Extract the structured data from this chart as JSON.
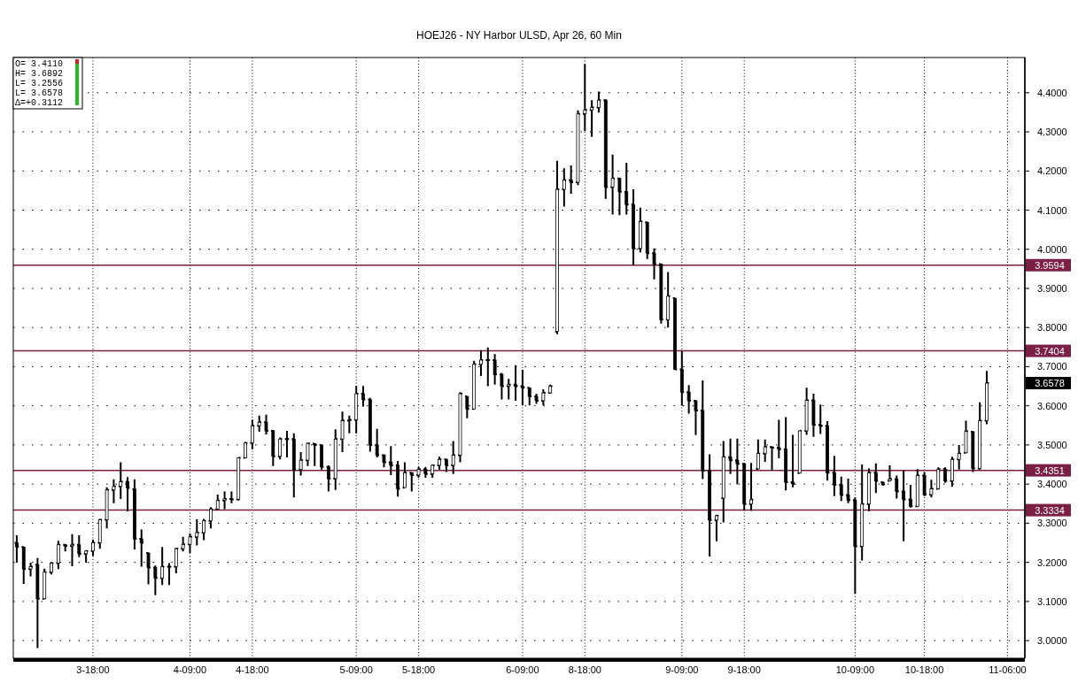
{
  "chart_data": {
    "type": "candlestick",
    "title": "HOEJ26 - NY Harbor ULSD, Apr 26, 60 Min",
    "categories": [
      null,
      null,
      null,
      null,
      null,
      null,
      null,
      null,
      null,
      null,
      null,
      "3-18:00",
      null,
      null,
      null,
      null,
      null,
      null,
      null,
      null,
      null,
      null,
      null,
      null,
      null,
      "4-09:00",
      null,
      null,
      null,
      null,
      null,
      null,
      null,
      null,
      "4-18:00",
      null,
      null,
      null,
      null,
      null,
      null,
      null,
      null,
      null,
      null,
      null,
      null,
      null,
      null,
      "5-09:00",
      null,
      null,
      null,
      null,
      null,
      null,
      null,
      null,
      "5-18:00",
      null,
      null,
      null,
      null,
      null,
      null,
      null,
      null,
      null,
      null,
      null,
      null,
      null,
      null,
      "6-09:00",
      null,
      null,
      null,
      null,
      null,
      null,
      null,
      null,
      "8-18:00",
      null,
      null,
      null,
      null,
      null,
      null,
      null,
      null,
      null,
      null,
      null,
      null,
      null,
      "9-09:00",
      null,
      null,
      null,
      null,
      null,
      null,
      null,
      null,
      "9-18:00",
      null,
      null,
      null,
      null,
      null,
      null,
      null,
      null,
      null,
      null,
      null,
      null,
      null,
      null,
      null,
      "10-09:00",
      null,
      null,
      null,
      null,
      null,
      null,
      null,
      null,
      null,
      "10-18:00",
      null,
      null,
      null,
      null,
      null,
      null,
      null,
      null,
      null,
      null,
      null,
      "11-06:00",
      null,
      null
    ],
    "ohlc": [
      [
        3.25,
        3.269,
        3.199,
        3.24
      ],
      [
        3.239,
        3.239,
        3.145,
        3.183
      ],
      [
        3.183,
        3.199,
        3.164,
        3.189
      ],
      [
        3.194,
        3.211,
        2.981,
        3.107
      ],
      [
        3.107,
        3.184,
        3.107,
        3.175
      ],
      [
        3.175,
        3.199,
        3.169,
        3.198
      ],
      [
        3.198,
        3.255,
        3.183,
        3.245
      ],
      [
        3.245,
        3.246,
        3.228,
        3.242
      ],
      [
        3.242,
        3.272,
        3.19,
        3.245
      ],
      [
        3.245,
        3.269,
        3.213,
        3.222
      ],
      [
        3.222,
        3.231,
        3.199,
        3.229
      ],
      [
        3.229,
        3.258,
        3.216,
        3.25
      ],
      [
        3.25,
        3.311,
        3.235,
        3.309
      ],
      [
        3.309,
        3.392,
        3.287,
        3.385
      ],
      [
        3.385,
        3.412,
        3.351,
        3.394
      ],
      [
        3.394,
        3.456,
        3.362,
        3.406
      ],
      [
        3.406,
        3.418,
        3.33,
        3.39
      ],
      [
        3.387,
        3.412,
        3.233,
        3.26
      ],
      [
        3.26,
        3.284,
        3.189,
        3.25
      ],
      [
        3.224,
        3.224,
        3.144,
        3.187
      ],
      [
        3.187,
        3.192,
        3.116,
        3.16
      ],
      [
        3.16,
        3.239,
        3.142,
        3.189
      ],
      [
        3.189,
        3.198,
        3.142,
        3.189
      ],
      [
        3.189,
        3.237,
        3.172,
        3.235
      ],
      [
        3.235,
        3.265,
        3.228,
        3.246
      ],
      [
        3.246,
        3.274,
        3.224,
        3.265
      ],
      [
        3.265,
        3.31,
        3.243,
        3.276
      ],
      [
        3.276,
        3.311,
        3.257,
        3.306
      ],
      [
        3.306,
        3.341,
        3.287,
        3.336
      ],
      [
        3.336,
        3.373,
        3.336,
        3.358
      ],
      [
        3.358,
        3.381,
        3.336,
        3.362
      ],
      [
        3.362,
        3.381,
        3.351,
        3.361
      ],
      [
        3.361,
        3.468,
        3.358,
        3.467
      ],
      [
        3.467,
        3.508,
        3.467,
        3.505
      ],
      [
        3.505,
        3.564,
        3.489,
        3.549
      ],
      [
        3.549,
        3.575,
        3.534,
        3.558
      ],
      [
        3.558,
        3.577,
        3.527,
        3.536
      ],
      [
        3.536,
        3.538,
        3.446,
        3.471
      ],
      [
        3.471,
        3.519,
        3.463,
        3.515
      ],
      [
        3.515,
        3.536,
        3.468,
        3.515
      ],
      [
        3.515,
        3.53,
        3.366,
        3.437
      ],
      [
        3.437,
        3.482,
        3.422,
        3.461
      ],
      [
        3.461,
        3.506,
        3.446,
        3.504
      ],
      [
        3.503,
        3.503,
        3.446,
        3.5
      ],
      [
        3.5,
        3.5,
        3.437,
        3.444
      ],
      [
        3.444,
        3.448,
        3.381,
        3.414
      ],
      [
        3.414,
        3.54,
        3.385,
        3.515
      ],
      [
        3.515,
        3.585,
        3.482,
        3.562
      ],
      [
        3.562,
        3.575,
        3.53,
        3.564
      ],
      [
        3.564,
        3.651,
        3.53,
        3.631
      ],
      [
        3.631,
        3.651,
        3.598,
        3.616
      ],
      [
        3.616,
        3.62,
        3.483,
        3.5
      ],
      [
        3.5,
        3.541,
        3.468,
        3.474
      ],
      [
        3.474,
        3.476,
        3.443,
        3.456
      ],
      [
        3.456,
        3.497,
        3.423,
        3.448
      ],
      [
        3.448,
        3.459,
        3.368,
        3.388
      ],
      [
        3.391,
        3.456,
        3.391,
        3.429
      ],
      [
        3.429,
        3.429,
        3.381,
        3.423
      ],
      [
        3.423,
        3.444,
        3.416,
        3.438
      ],
      [
        3.438,
        3.444,
        3.416,
        3.426
      ],
      [
        3.426,
        3.45,
        3.416,
        3.448
      ],
      [
        3.448,
        3.47,
        3.437,
        3.463
      ],
      [
        3.463,
        3.465,
        3.431,
        3.448
      ],
      [
        3.448,
        3.51,
        3.426,
        3.474
      ],
      [
        3.474,
        3.635,
        3.456,
        3.631
      ],
      [
        3.624,
        3.624,
        3.568,
        3.592
      ],
      [
        3.592,
        3.715,
        3.592,
        3.706
      ],
      [
        3.706,
        3.742,
        3.676,
        3.717
      ],
      [
        3.717,
        3.749,
        3.65,
        3.717
      ],
      [
        3.717,
        3.732,
        3.654,
        3.68
      ],
      [
        3.68,
        3.684,
        3.616,
        3.65
      ],
      [
        3.65,
        3.669,
        3.616,
        3.654
      ],
      [
        3.654,
        3.704,
        3.613,
        3.65
      ],
      [
        3.65,
        3.692,
        3.601,
        3.646
      ],
      [
        3.646,
        3.646,
        3.601,
        3.624
      ],
      [
        3.624,
        3.631,
        3.605,
        3.613
      ],
      [
        3.613,
        3.642,
        3.601,
        3.633
      ],
      [
        3.633,
        3.654,
        3.631,
        3.65
      ],
      [
        3.79,
        4.226,
        3.783,
        4.153
      ],
      [
        4.153,
        4.207,
        4.109,
        4.177
      ],
      [
        4.177,
        4.214,
        4.142,
        4.171
      ],
      [
        4.171,
        4.355,
        4.164,
        4.346
      ],
      [
        4.346,
        4.473,
        4.302,
        4.356
      ],
      [
        4.356,
        4.381,
        4.287,
        4.362
      ],
      [
        4.362,
        4.403,
        4.349,
        4.381
      ],
      [
        4.381,
        4.383,
        4.129,
        4.159
      ],
      [
        4.159,
        4.242,
        4.089,
        4.181
      ],
      [
        4.181,
        4.183,
        4.087,
        4.147
      ],
      [
        4.147,
        4.221,
        4.089,
        4.114
      ],
      [
        4.114,
        4.153,
        3.96,
        4.002
      ],
      [
        4.002,
        4.106,
        3.992,
        4.071
      ],
      [
        4.069,
        4.069,
        3.975,
        3.99
      ],
      [
        3.99,
        4.002,
        3.923,
        3.962
      ],
      [
        3.962,
        3.962,
        3.81,
        3.82
      ],
      [
        3.82,
        3.942,
        3.8,
        3.88
      ],
      [
        3.875,
        3.875,
        3.693,
        3.693
      ],
      [
        3.693,
        3.74,
        3.6,
        3.635
      ],
      [
        3.635,
        3.653,
        3.58,
        3.613
      ],
      [
        3.613,
        3.613,
        3.525,
        3.588
      ],
      [
        3.588,
        3.665,
        3.413,
        3.434
      ],
      [
        3.434,
        3.476,
        3.215,
        3.308
      ],
      [
        3.308,
        3.322,
        3.254,
        3.319
      ],
      [
        3.364,
        3.51,
        3.302,
        3.469
      ],
      [
        3.469,
        3.516,
        3.426,
        3.461
      ],
      [
        3.461,
        3.516,
        3.399,
        3.452
      ],
      [
        3.452,
        3.454,
        3.332,
        3.349
      ],
      [
        3.349,
        3.454,
        3.332,
        3.36
      ],
      [
        3.439,
        3.514,
        3.439,
        3.478
      ],
      [
        3.478,
        3.514,
        3.457,
        3.495
      ],
      [
        3.495,
        3.496,
        3.434,
        3.493
      ],
      [
        3.493,
        3.564,
        3.466,
        3.489
      ],
      [
        3.489,
        3.571,
        3.384,
        3.405
      ],
      [
        3.405,
        3.526,
        3.392,
        3.401
      ],
      [
        3.428,
        3.536,
        3.428,
        3.536
      ],
      [
        3.536,
        3.646,
        3.526,
        3.614
      ],
      [
        3.614,
        3.631,
        3.521,
        3.551
      ],
      [
        3.551,
        3.603,
        3.528,
        3.549
      ],
      [
        3.549,
        3.561,
        3.409,
        3.429
      ],
      [
        3.429,
        3.472,
        3.369,
        3.398
      ],
      [
        3.398,
        3.419,
        3.357,
        3.372
      ],
      [
        3.372,
        3.414,
        3.351,
        3.359
      ],
      [
        3.359,
        3.366,
        3.12,
        3.241
      ],
      [
        3.241,
        3.45,
        3.205,
        3.349
      ],
      [
        3.349,
        3.44,
        3.331,
        3.429
      ],
      [
        3.429,
        3.453,
        3.377,
        3.408
      ],
      [
        3.405,
        3.405,
        3.396,
        3.399
      ],
      [
        3.408,
        3.448,
        3.408,
        3.413
      ],
      [
        3.413,
        3.422,
        3.363,
        3.381
      ],
      [
        3.381,
        3.435,
        3.254,
        3.361
      ],
      [
        3.361,
        3.398,
        3.34,
        3.343
      ],
      [
        3.343,
        3.438,
        3.343,
        3.422
      ],
      [
        3.422,
        3.431,
        3.369,
        3.373
      ],
      [
        3.373,
        3.411,
        3.366,
        3.388
      ],
      [
        3.388,
        3.443,
        3.386,
        3.438
      ],
      [
        3.438,
        3.443,
        3.403,
        3.408
      ],
      [
        3.408,
        3.47,
        3.393,
        3.463
      ],
      [
        3.463,
        3.5,
        3.437,
        3.478
      ],
      [
        3.48,
        3.562,
        3.48,
        3.535
      ],
      [
        3.534,
        3.534,
        3.431,
        3.44
      ],
      [
        3.44,
        3.609,
        3.437,
        3.562
      ],
      [
        3.562,
        3.689,
        3.553,
        3.658
      ],
      null,
      null,
      null,
      null,
      null
    ],
    "color": "#000000",
    "ylim": [
      2.955,
      4.49
    ],
    "yticks": [
      {
        "value": 3.0,
        "label": "3.0000"
      },
      {
        "value": 3.1,
        "label": "3.1000"
      },
      {
        "value": 3.2,
        "label": "3.2000"
      },
      {
        "value": 3.3,
        "label": "3.3000"
      },
      {
        "value": 3.4,
        "label": "3.4000"
      },
      {
        "value": 3.5,
        "label": "3.5000"
      },
      {
        "value": 3.6,
        "label": "3.6000"
      },
      {
        "value": 3.7,
        "label": "3.7000"
      },
      {
        "value": 3.8,
        "label": "3.8000"
      },
      {
        "value": 3.9,
        "label": "3.9000"
      },
      {
        "value": 4.0,
        "label": "4.0000"
      },
      {
        "value": 4.1,
        "label": "4.1000"
      },
      {
        "value": 4.2,
        "label": "4.2000"
      },
      {
        "value": 4.3,
        "label": "4.3000"
      },
      {
        "value": 4.4,
        "label": "4.4000"
      }
    ],
    "grid": true,
    "ref_lines": [
      {
        "axis": "y",
        "value": 3.9594,
        "label": "3.9594",
        "color": "#7b1f45"
      },
      {
        "axis": "y",
        "value": 3.7404,
        "label": "3.7404",
        "color": "#7b1f45"
      },
      {
        "axis": "y",
        "value": 3.4351,
        "label": "3.4351",
        "color": "#7b1f45"
      },
      {
        "axis": "y",
        "value": 3.3334,
        "label": "3.3334",
        "color": "#7b1f45"
      }
    ],
    "annotations": [
      "O= 3.4110",
      "H= 3.6892",
      "L= 3.2556",
      "L= 3.6578",
      "Δ=+0.3112",
      "3.6578"
    ]
  }
}
